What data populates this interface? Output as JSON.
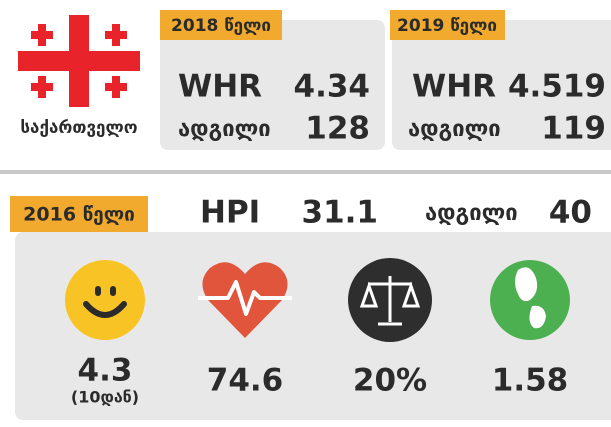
{
  "country": "საქართველო",
  "whr": [
    {
      "year": "2018 წელი",
      "index_label": "WHR",
      "index_value": "4.34",
      "rank_label": "ადგილი",
      "rank_value": "128"
    },
    {
      "year": "2019 წელი",
      "index_label": "WHR",
      "index_value": "4.519",
      "rank_label": "ადგილი",
      "rank_value": "119"
    }
  ],
  "hpi": {
    "year": "2016 წელი",
    "index_label": "HPI",
    "index_value": "31.1",
    "rank_label": "ადგილი",
    "rank_value": "40",
    "metrics": [
      {
        "value": "4.3",
        "note": "(10დან)"
      },
      {
        "value": "74.6"
      },
      {
        "value": "20%"
      },
      {
        "value": "1.58"
      }
    ]
  }
}
